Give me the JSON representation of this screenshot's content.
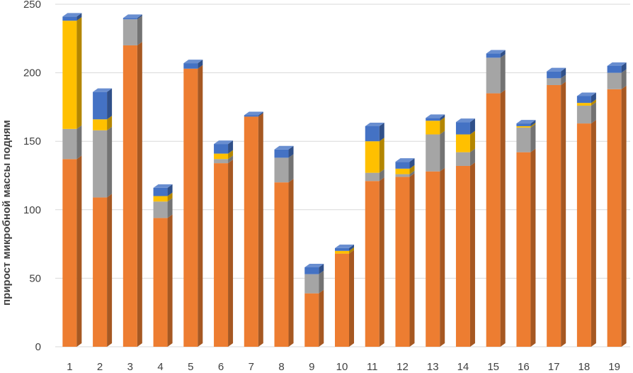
{
  "chart_data": {
    "type": "bar",
    "stacked": true,
    "style": "3d-column",
    "categories": [
      "1",
      "2",
      "3",
      "4",
      "5",
      "6",
      "7",
      "8",
      "9",
      "10",
      "11",
      "12",
      "13",
      "14",
      "15",
      "16",
      "17",
      "18",
      "19"
    ],
    "series": [
      {
        "color": "#ED7D31",
        "values": [
          137,
          109,
          220,
          94,
          203,
          134,
          168,
          120,
          39,
          68,
          121,
          124,
          128,
          132,
          185,
          142,
          191,
          163,
          188
        ]
      },
      {
        "color": "#A5A5A5",
        "values": [
          22,
          49,
          19,
          12,
          0,
          3,
          0,
          18,
          14,
          0,
          6,
          2,
          27,
          10,
          26,
          18,
          5,
          13,
          12
        ]
      },
      {
        "color": "#FFC000",
        "values": [
          79,
          8,
          0,
          4,
          0,
          4,
          0,
          0,
          0,
          2,
          23,
          4,
          10,
          13,
          0,
          1,
          0,
          2,
          0
        ]
      },
      {
        "color": "#4472C4",
        "values": [
          3,
          20,
          1,
          6,
          4,
          7,
          1,
          6,
          5,
          2,
          11,
          5,
          2,
          9,
          3,
          2,
          5,
          5,
          5
        ]
      }
    ],
    "yticks": [
      "0",
      "50",
      "100",
      "150",
      "200",
      "250"
    ],
    "ylim": [
      0,
      250
    ],
    "ylabel": "прирост микробной массы подням",
    "grid": true,
    "legend": "none"
  }
}
